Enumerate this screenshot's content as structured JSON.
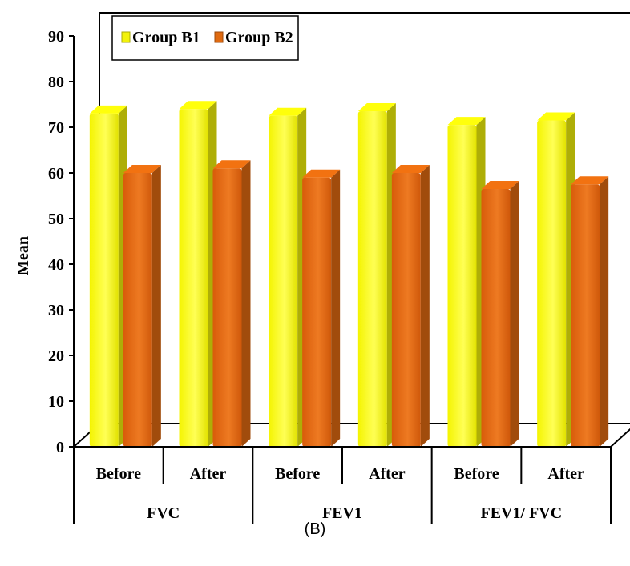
{
  "chart_data": {
    "type": "bar",
    "title": "",
    "ylabel": "Mean",
    "ylim": [
      0,
      90
    ],
    "yticks": [
      0,
      10,
      20,
      30,
      40,
      50,
      60,
      70,
      80,
      90
    ],
    "grid": false,
    "legend_position": "top-left",
    "categories": [
      "Before",
      "After",
      "Before",
      "After",
      "Before",
      "After"
    ],
    "category_groups": [
      {
        "label": "FVC",
        "span": 2
      },
      {
        "label": "FEV1",
        "span": 2
      },
      {
        "label": "FEV1/ FVC",
        "span": 2
      }
    ],
    "series": [
      {
        "name": "Group B1",
        "color": "#f2f20a",
        "values": [
          73,
          74,
          72.5,
          73.5,
          70.5,
          71.5
        ]
      },
      {
        "name": "Group B2",
        "color": "#e06a10",
        "values": [
          60,
          61,
          59,
          60,
          56.5,
          57.5
        ]
      }
    ]
  },
  "caption": "(B)"
}
